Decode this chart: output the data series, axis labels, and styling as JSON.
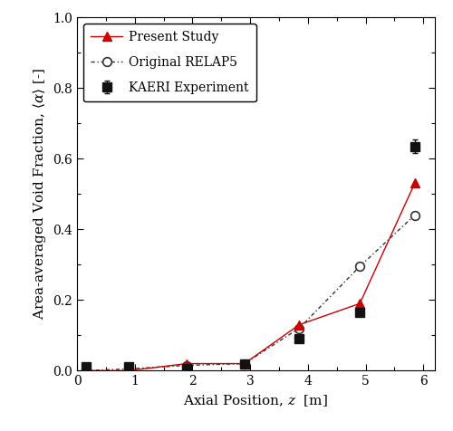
{
  "present_study_x": [
    0.15,
    0.9,
    1.9,
    2.9,
    3.85,
    4.9,
    5.85
  ],
  "present_study_y": [
    0.0,
    0.0,
    0.02,
    0.02,
    0.13,
    0.19,
    0.53
  ],
  "original_relap5_x": [
    0.15,
    0.9,
    1.9,
    2.9,
    3.85,
    4.9,
    5.85
  ],
  "original_relap5_y": [
    0.0,
    0.005,
    0.015,
    0.02,
    0.12,
    0.295,
    0.44
  ],
  "kaeri_x": [
    0.15,
    0.9,
    1.9,
    2.9,
    3.85,
    4.9,
    5.85
  ],
  "kaeri_y": [
    0.01,
    0.01,
    0.005,
    0.02,
    0.09,
    0.165,
    0.635
  ],
  "kaeri_yerr": [
    0.005,
    0.005,
    0.005,
    0.005,
    0.005,
    0.008,
    0.02
  ],
  "xlabel": "Axial Position, $z$  [m]",
  "ylabel": "Area-averaged Void Fraction, $\\langle\\alpha\\rangle$ [-]",
  "xlim": [
    0.0,
    6.2
  ],
  "ylim": [
    0.0,
    1.0
  ],
  "xticks": [
    0.0,
    1.0,
    2.0,
    3.0,
    4.0,
    5.0,
    6.0
  ],
  "yticks": [
    0.0,
    0.2,
    0.4,
    0.6,
    0.8,
    1.0
  ],
  "present_study_color": "#cc0000",
  "relap5_color": "#333333",
  "kaeri_color": "#111111",
  "legend_labels": [
    "Present Study",
    "Original RELAP5",
    "KAERI Experiment"
  ],
  "figsize": [
    5.0,
    4.76
  ],
  "dpi": 100
}
